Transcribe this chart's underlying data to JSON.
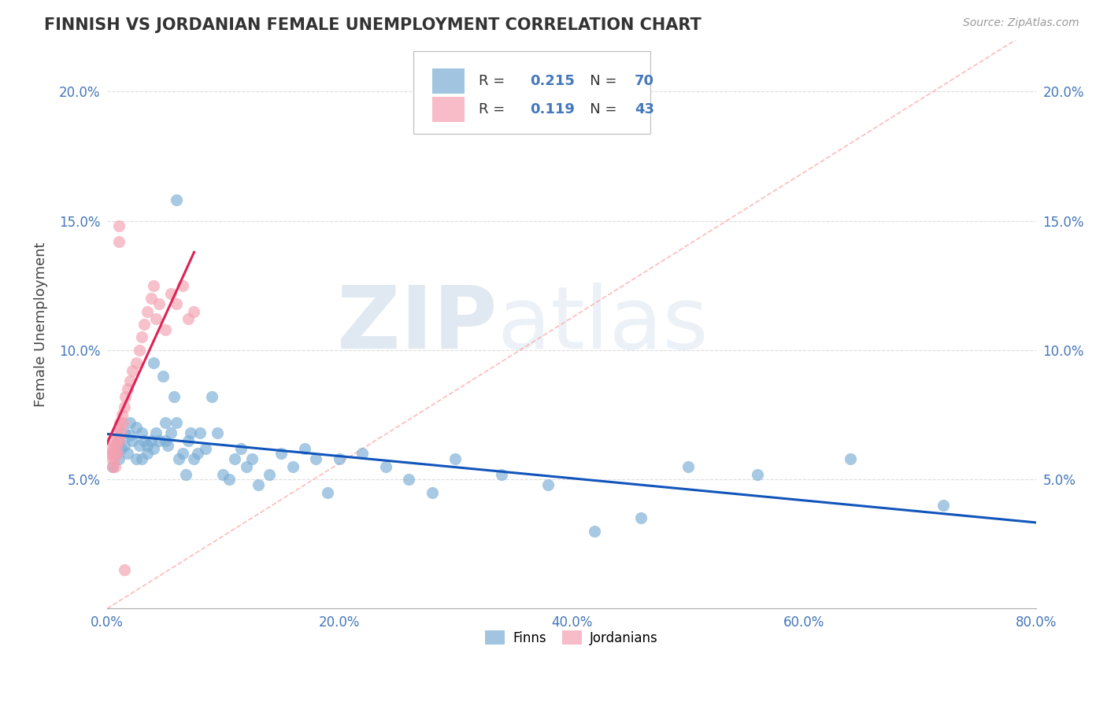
{
  "title": "FINNISH VS JORDANIAN FEMALE UNEMPLOYMENT CORRELATION CHART",
  "source": "Source: ZipAtlas.com",
  "ylabel": "Female Unemployment",
  "xlim": [
    0.0,
    0.8
  ],
  "ylim": [
    0.0,
    0.22
  ],
  "xticks": [
    0.0,
    0.2,
    0.4,
    0.6,
    0.8
  ],
  "xticklabels": [
    "0.0%",
    "20.0%",
    "40.0%",
    "60.0%",
    "80.0%"
  ],
  "yticks": [
    0.05,
    0.1,
    0.15,
    0.2
  ],
  "yticklabels": [
    "5.0%",
    "10.0%",
    "15.0%",
    "20.0%"
  ],
  "finns_color": "#7AADD4",
  "jordanians_color": "#F4A0B0",
  "finns_line_color": "#1155BB",
  "jordanians_line_color": "#DD2255",
  "R_finns": 0.215,
  "N_finns": 70,
  "R_jordanians": 0.119,
  "N_jordanians": 43,
  "watermark_zip": "ZIP",
  "watermark_atlas": "atlas",
  "background_color": "#FFFFFF",
  "grid_color": "#DDDDDD",
  "finns_x": [
    0.005,
    0.008,
    0.01,
    0.01,
    0.012,
    0.015,
    0.015,
    0.018,
    0.02,
    0.02,
    0.022,
    0.025,
    0.025,
    0.028,
    0.03,
    0.03,
    0.032,
    0.035,
    0.035,
    0.038,
    0.04,
    0.04,
    0.042,
    0.045,
    0.048,
    0.05,
    0.05,
    0.052,
    0.055,
    0.058,
    0.06,
    0.06,
    0.062,
    0.065,
    0.068,
    0.07,
    0.072,
    0.075,
    0.078,
    0.08,
    0.085,
    0.09,
    0.095,
    0.1,
    0.105,
    0.11,
    0.115,
    0.12,
    0.125,
    0.13,
    0.14,
    0.15,
    0.16,
    0.17,
    0.18,
    0.19,
    0.2,
    0.22,
    0.24,
    0.26,
    0.28,
    0.3,
    0.34,
    0.38,
    0.42,
    0.46,
    0.5,
    0.56,
    0.64,
    0.72
  ],
  "finns_y": [
    0.055,
    0.06,
    0.065,
    0.058,
    0.062,
    0.068,
    0.063,
    0.06,
    0.072,
    0.067,
    0.065,
    0.07,
    0.058,
    0.063,
    0.068,
    0.058,
    0.065,
    0.063,
    0.06,
    0.065,
    0.095,
    0.062,
    0.068,
    0.065,
    0.09,
    0.072,
    0.065,
    0.063,
    0.068,
    0.082,
    0.158,
    0.072,
    0.058,
    0.06,
    0.052,
    0.065,
    0.068,
    0.058,
    0.06,
    0.068,
    0.062,
    0.082,
    0.068,
    0.052,
    0.05,
    0.058,
    0.062,
    0.055,
    0.058,
    0.048,
    0.052,
    0.06,
    0.055,
    0.062,
    0.058,
    0.045,
    0.058,
    0.06,
    0.055,
    0.05,
    0.045,
    0.058,
    0.052,
    0.048,
    0.03,
    0.035,
    0.055,
    0.052,
    0.058,
    0.04
  ],
  "jordanians_x": [
    0.002,
    0.003,
    0.004,
    0.004,
    0.005,
    0.005,
    0.006,
    0.006,
    0.007,
    0.007,
    0.008,
    0.008,
    0.009,
    0.009,
    0.01,
    0.01,
    0.011,
    0.012,
    0.013,
    0.014,
    0.015,
    0.016,
    0.018,
    0.02,
    0.022,
    0.025,
    0.028,
    0.03,
    0.032,
    0.035,
    0.038,
    0.04,
    0.042,
    0.045,
    0.05,
    0.055,
    0.06,
    0.065,
    0.07,
    0.075,
    0.01,
    0.01,
    0.015
  ],
  "jordanians_y": [
    0.062,
    0.06,
    0.058,
    0.065,
    0.06,
    0.055,
    0.063,
    0.058,
    0.06,
    0.055,
    0.068,
    0.063,
    0.065,
    0.06,
    0.07,
    0.065,
    0.072,
    0.068,
    0.075,
    0.072,
    0.078,
    0.082,
    0.085,
    0.088,
    0.092,
    0.095,
    0.1,
    0.105,
    0.11,
    0.115,
    0.12,
    0.125,
    0.112,
    0.118,
    0.108,
    0.122,
    0.118,
    0.125,
    0.112,
    0.115,
    0.148,
    0.142,
    0.015
  ]
}
